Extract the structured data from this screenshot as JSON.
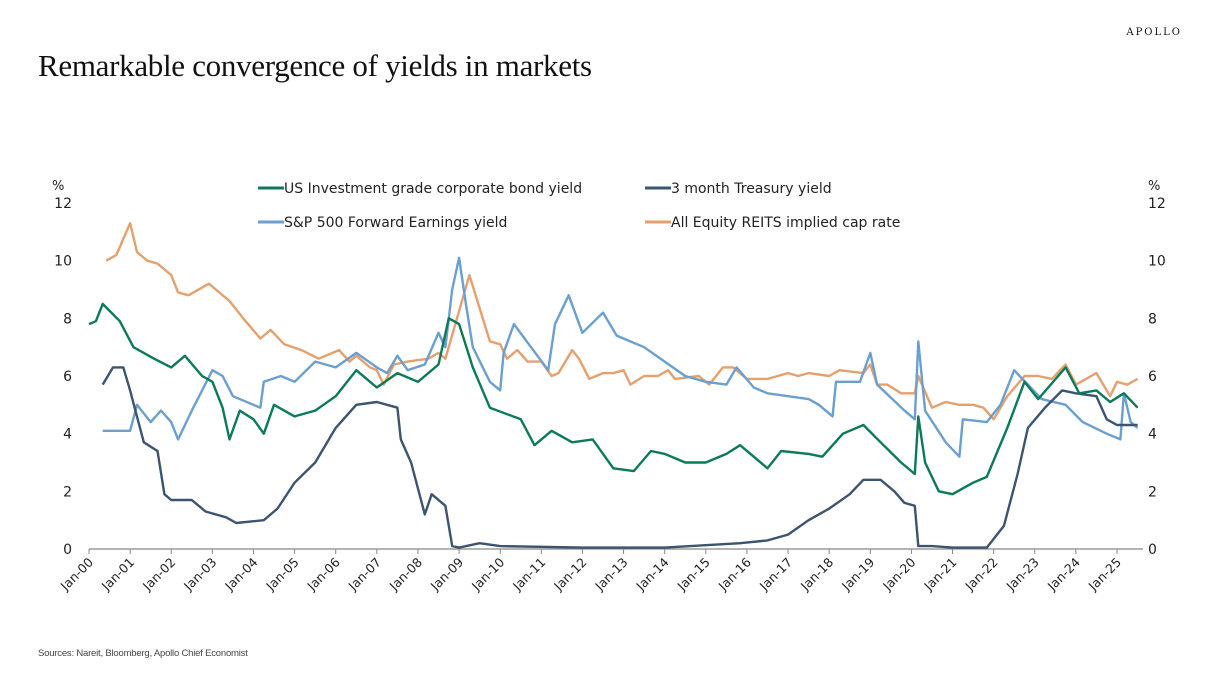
{
  "brand": "APOLLO",
  "title": "Remarkable convergence of  yields in markets",
  "sources": "Sources: Nareit, Bloomberg, Apollo Chief Economist",
  "chart_data": {
    "type": "line",
    "title": "",
    "y_unit_left": "%",
    "y_unit_right": "%",
    "ylim": [
      0,
      12
    ],
    "y_ticks": [
      "0",
      "2",
      "4",
      "6",
      "8",
      "10",
      "12"
    ],
    "xlim": [
      "2000-01",
      "2025-08"
    ],
    "x_ticks": [
      "Jan-00",
      "Jan-01",
      "Jan-02",
      "Jan-03",
      "Jan-04",
      "Jan-05",
      "Jan-06",
      "Jan-07",
      "Jan-08",
      "Jan-09",
      "Jan-10",
      "Jan-11",
      "Jan-12",
      "Jan-13",
      "Jan-14",
      "Jan-15",
      "Jan-16",
      "Jan-17",
      "Jan-18",
      "Jan-19",
      "Jan-20",
      "Jan-21",
      "Jan-22",
      "Jan-23",
      "Jan-24",
      "Jan-25"
    ],
    "grid": false,
    "legend_placement": "top-center",
    "series": [
      {
        "name": "US Investment grade corporate bond yield",
        "color": "#0b7a59",
        "points": [
          [
            "2000-01",
            7.8
          ],
          [
            "2000-03",
            7.9
          ],
          [
            "2000-05",
            8.5
          ],
          [
            "2000-10",
            7.9
          ],
          [
            "2001-02",
            7.0
          ],
          [
            "2001-08",
            6.6
          ],
          [
            "2002-01",
            6.3
          ],
          [
            "2002-05",
            6.7
          ],
          [
            "2002-10",
            6.0
          ],
          [
            "2003-01",
            5.8
          ],
          [
            "2003-04",
            4.9
          ],
          [
            "2003-06",
            3.8
          ],
          [
            "2003-09",
            4.8
          ],
          [
            "2004-01",
            4.5
          ],
          [
            "2004-04",
            4.0
          ],
          [
            "2004-07",
            5.0
          ],
          [
            "2005-01",
            4.6
          ],
          [
            "2005-07",
            4.8
          ],
          [
            "2006-01",
            5.3
          ],
          [
            "2006-07",
            6.2
          ],
          [
            "2007-01",
            5.6
          ],
          [
            "2007-07",
            6.1
          ],
          [
            "2008-01",
            5.8
          ],
          [
            "2008-07",
            6.4
          ],
          [
            "2008-10",
            8.0
          ],
          [
            "2009-01",
            7.8
          ],
          [
            "2009-05",
            6.3
          ],
          [
            "2009-10",
            4.9
          ],
          [
            "2010-07",
            4.5
          ],
          [
            "2010-11",
            3.6
          ],
          [
            "2011-04",
            4.1
          ],
          [
            "2011-10",
            3.7
          ],
          [
            "2012-04",
            3.8
          ],
          [
            "2012-10",
            2.8
          ],
          [
            "2013-04",
            2.7
          ],
          [
            "2013-09",
            3.4
          ],
          [
            "2014-01",
            3.3
          ],
          [
            "2014-07",
            3.0
          ],
          [
            "2015-01",
            3.0
          ],
          [
            "2015-07",
            3.3
          ],
          [
            "2015-11",
            3.6
          ],
          [
            "2016-07",
            2.8
          ],
          [
            "2016-11",
            3.4
          ],
          [
            "2017-07",
            3.3
          ],
          [
            "2017-11",
            3.2
          ],
          [
            "2018-05",
            4.0
          ],
          [
            "2018-11",
            4.3
          ],
          [
            "2019-04",
            3.7
          ],
          [
            "2019-10",
            3.0
          ],
          [
            "2020-02",
            2.6
          ],
          [
            "2020-03",
            4.6
          ],
          [
            "2020-05",
            3.0
          ],
          [
            "2020-09",
            2.0
          ],
          [
            "2021-01",
            1.9
          ],
          [
            "2021-07",
            2.3
          ],
          [
            "2021-11",
            2.5
          ],
          [
            "2022-05",
            4.2
          ],
          [
            "2022-10",
            5.8
          ],
          [
            "2023-02",
            5.2
          ],
          [
            "2023-10",
            6.3
          ],
          [
            "2024-02",
            5.4
          ],
          [
            "2024-07",
            5.5
          ],
          [
            "2024-11",
            5.1
          ],
          [
            "2025-03",
            5.4
          ],
          [
            "2025-07",
            4.9
          ]
        ]
      },
      {
        "name": "3 month Treasury yield",
        "color": "#3b5470",
        "points": [
          [
            "2000-05",
            5.7
          ],
          [
            "2000-08",
            6.3
          ],
          [
            "2000-11",
            6.3
          ],
          [
            "2001-01",
            5.5
          ],
          [
            "2001-05",
            3.7
          ],
          [
            "2001-09",
            3.4
          ],
          [
            "2001-11",
            1.9
          ],
          [
            "2002-01",
            1.7
          ],
          [
            "2002-07",
            1.7
          ],
          [
            "2002-11",
            1.3
          ],
          [
            "2003-05",
            1.1
          ],
          [
            "2003-08",
            0.9
          ],
          [
            "2004-04",
            1.0
          ],
          [
            "2004-08",
            1.4
          ],
          [
            "2005-01",
            2.3
          ],
          [
            "2005-07",
            3.0
          ],
          [
            "2006-01",
            4.2
          ],
          [
            "2006-07",
            5.0
          ],
          [
            "2007-01",
            5.1
          ],
          [
            "2007-07",
            4.9
          ],
          [
            "2007-08",
            3.8
          ],
          [
            "2007-11",
            3.0
          ],
          [
            "2008-03",
            1.2
          ],
          [
            "2008-05",
            1.9
          ],
          [
            "2008-09",
            1.5
          ],
          [
            "2008-11",
            0.1
          ],
          [
            "2009-01",
            0.05
          ],
          [
            "2009-07",
            0.2
          ],
          [
            "2010-01",
            0.1
          ],
          [
            "2012-01",
            0.05
          ],
          [
            "2014-01",
            0.05
          ],
          [
            "2015-11",
            0.2
          ],
          [
            "2016-07",
            0.3
          ],
          [
            "2017-01",
            0.5
          ],
          [
            "2017-07",
            1.0
          ],
          [
            "2018-01",
            1.4
          ],
          [
            "2018-07",
            1.9
          ],
          [
            "2018-11",
            2.4
          ],
          [
            "2019-04",
            2.4
          ],
          [
            "2019-08",
            2.0
          ],
          [
            "2019-11",
            1.6
          ],
          [
            "2020-02",
            1.5
          ],
          [
            "2020-03",
            0.1
          ],
          [
            "2020-07",
            0.1
          ],
          [
            "2021-01",
            0.05
          ],
          [
            "2021-11",
            0.05
          ],
          [
            "2022-04",
            0.8
          ],
          [
            "2022-08",
            2.6
          ],
          [
            "2022-11",
            4.2
          ],
          [
            "2023-04",
            4.9
          ],
          [
            "2023-09",
            5.5
          ],
          [
            "2024-01",
            5.4
          ],
          [
            "2024-07",
            5.3
          ],
          [
            "2024-10",
            4.5
          ],
          [
            "2025-01",
            4.3
          ],
          [
            "2025-07",
            4.3
          ]
        ]
      },
      {
        "name": "S&P 500 Forward Earnings yield",
        "color": "#6b9fcf",
        "points": [
          [
            "2000-05",
            4.1
          ],
          [
            "2001-01",
            4.1
          ],
          [
            "2001-03",
            5.0
          ],
          [
            "2001-07",
            4.4
          ],
          [
            "2001-10",
            4.8
          ],
          [
            "2002-01",
            4.4
          ],
          [
            "2002-03",
            3.8
          ],
          [
            "2002-07",
            4.8
          ],
          [
            "2002-10",
            5.5
          ],
          [
            "2003-01",
            6.2
          ],
          [
            "2003-04",
            6.0
          ],
          [
            "2003-07",
            5.3
          ],
          [
            "2004-01",
            5.0
          ],
          [
            "2004-03",
            4.9
          ],
          [
            "2004-04",
            5.8
          ],
          [
            "2004-09",
            6.0
          ],
          [
            "2005-01",
            5.8
          ],
          [
            "2005-07",
            6.5
          ],
          [
            "2006-01",
            6.3
          ],
          [
            "2006-07",
            6.8
          ],
          [
            "2007-01",
            6.3
          ],
          [
            "2007-04",
            6.1
          ],
          [
            "2007-07",
            6.7
          ],
          [
            "2007-10",
            6.2
          ],
          [
            "2008-03",
            6.4
          ],
          [
            "2008-07",
            7.5
          ],
          [
            "2008-09",
            7.0
          ],
          [
            "2008-11",
            9.0
          ],
          [
            "2009-01",
            10.1
          ],
          [
            "2009-03",
            8.5
          ],
          [
            "2009-05",
            7.0
          ],
          [
            "2009-10",
            5.8
          ],
          [
            "2010-01",
            5.5
          ],
          [
            "2010-02",
            6.8
          ],
          [
            "2010-05",
            7.8
          ],
          [
            "2010-10",
            7.0
          ],
          [
            "2011-03",
            6.2
          ],
          [
            "2011-05",
            7.8
          ],
          [
            "2011-09",
            8.8
          ],
          [
            "2012-01",
            7.5
          ],
          [
            "2012-07",
            8.2
          ],
          [
            "2012-11",
            7.4
          ],
          [
            "2013-07",
            7.0
          ],
          [
            "2014-01",
            6.5
          ],
          [
            "2014-07",
            6.0
          ],
          [
            "2015-01",
            5.8
          ],
          [
            "2015-07",
            5.7
          ],
          [
            "2015-10",
            6.3
          ],
          [
            "2016-03",
            5.6
          ],
          [
            "2016-07",
            5.4
          ],
          [
            "2017-01",
            5.3
          ],
          [
            "2017-07",
            5.2
          ],
          [
            "2017-10",
            5.0
          ],
          [
            "2018-02",
            4.6
          ],
          [
            "2018-03",
            5.8
          ],
          [
            "2018-10",
            5.8
          ],
          [
            "2019-01",
            6.8
          ],
          [
            "2019-03",
            5.7
          ],
          [
            "2019-11",
            4.8
          ],
          [
            "2020-02",
            4.5
          ],
          [
            "2020-03",
            7.2
          ],
          [
            "2020-05",
            4.8
          ],
          [
            "2020-11",
            3.7
          ],
          [
            "2021-03",
            3.2
          ],
          [
            "2021-04",
            4.5
          ],
          [
            "2021-11",
            4.4
          ],
          [
            "2022-03",
            5.0
          ],
          [
            "2022-07",
            6.2
          ],
          [
            "2022-11",
            5.7
          ],
          [
            "2023-03",
            5.2
          ],
          [
            "2023-10",
            5.0
          ],
          [
            "2024-03",
            4.4
          ],
          [
            "2024-10",
            4.0
          ],
          [
            "2025-02",
            3.8
          ],
          [
            "2025-03",
            5.4
          ],
          [
            "2025-05",
            4.4
          ],
          [
            "2025-07",
            4.2
          ]
        ]
      },
      {
        "name": "All Equity REITS implied cap rate",
        "color": "#e4a06d",
        "points": [
          [
            "2000-06",
            10.0
          ],
          [
            "2000-09",
            10.2
          ],
          [
            "2001-01",
            11.3
          ],
          [
            "2001-03",
            10.3
          ],
          [
            "2001-06",
            10.0
          ],
          [
            "2001-09",
            9.9
          ],
          [
            "2002-01",
            9.5
          ],
          [
            "2002-03",
            8.9
          ],
          [
            "2002-06",
            8.8
          ],
          [
            "2002-12",
            9.2
          ],
          [
            "2003-06",
            8.6
          ],
          [
            "2003-10",
            8.0
          ],
          [
            "2004-03",
            7.3
          ],
          [
            "2004-06",
            7.6
          ],
          [
            "2004-10",
            7.1
          ],
          [
            "2005-03",
            6.9
          ],
          [
            "2005-08",
            6.6
          ],
          [
            "2006-02",
            6.9
          ],
          [
            "2006-05",
            6.5
          ],
          [
            "2006-07",
            6.7
          ],
          [
            "2006-11",
            6.3
          ],
          [
            "2007-01",
            6.2
          ],
          [
            "2007-03",
            5.7
          ],
          [
            "2007-06",
            6.4
          ],
          [
            "2007-10",
            6.5
          ],
          [
            "2008-04",
            6.6
          ],
          [
            "2008-07",
            6.8
          ],
          [
            "2008-09",
            6.6
          ],
          [
            "2009-04",
            9.5
          ],
          [
            "2009-10",
            7.2
          ],
          [
            "2010-01",
            7.1
          ],
          [
            "2010-03",
            6.6
          ],
          [
            "2010-06",
            6.9
          ],
          [
            "2010-09",
            6.5
          ],
          [
            "2011-01",
            6.5
          ],
          [
            "2011-04",
            6.0
          ],
          [
            "2011-06",
            6.1
          ],
          [
            "2011-10",
            6.9
          ],
          [
            "2011-12",
            6.6
          ],
          [
            "2012-03",
            5.9
          ],
          [
            "2012-07",
            6.1
          ],
          [
            "2012-10",
            6.1
          ],
          [
            "2013-01",
            6.2
          ],
          [
            "2013-03",
            5.7
          ],
          [
            "2013-07",
            6.0
          ],
          [
            "2013-11",
            6.0
          ],
          [
            "2014-02",
            6.2
          ],
          [
            "2014-04",
            5.9
          ],
          [
            "2014-11",
            6.0
          ],
          [
            "2015-02",
            5.7
          ],
          [
            "2015-06",
            6.3
          ],
          [
            "2015-09",
            6.3
          ],
          [
            "2016-01",
            5.9
          ],
          [
            "2016-07",
            5.9
          ],
          [
            "2017-01",
            6.1
          ],
          [
            "2017-04",
            6.0
          ],
          [
            "2017-07",
            6.1
          ],
          [
            "2018-01",
            6.0
          ],
          [
            "2018-04",
            6.2
          ],
          [
            "2018-11",
            6.1
          ],
          [
            "2019-01",
            6.4
          ],
          [
            "2019-03",
            5.7
          ],
          [
            "2019-06",
            5.7
          ],
          [
            "2019-10",
            5.4
          ],
          [
            "2020-02",
            5.4
          ],
          [
            "2020-03",
            6.0
          ],
          [
            "2020-07",
            4.9
          ],
          [
            "2020-11",
            5.1
          ],
          [
            "2021-03",
            5.0
          ],
          [
            "2021-07",
            5.0
          ],
          [
            "2021-10",
            4.9
          ],
          [
            "2022-01",
            4.5
          ],
          [
            "2022-05",
            5.3
          ],
          [
            "2022-10",
            6.0
          ],
          [
            "2023-02",
            6.0
          ],
          [
            "2023-06",
            5.9
          ],
          [
            "2023-10",
            6.4
          ],
          [
            "2024-01",
            5.7
          ],
          [
            "2024-07",
            6.1
          ],
          [
            "2024-11",
            5.3
          ],
          [
            "2025-01",
            5.8
          ],
          [
            "2025-04",
            5.7
          ],
          [
            "2025-07",
            5.9
          ]
        ]
      }
    ]
  }
}
